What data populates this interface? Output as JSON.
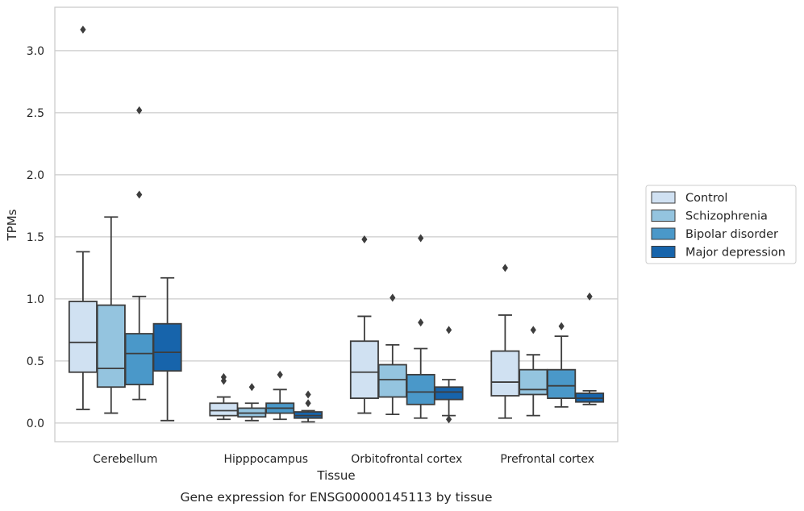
{
  "chart_data": {
    "type": "box",
    "title": "",
    "caption": "Gene expression for ENSG00000145113 by tissue",
    "xlabel": "Tissue",
    "ylabel": "TPMs",
    "ylim": [
      -0.15,
      3.35
    ],
    "yticks": [
      0.0,
      0.5,
      1.0,
      1.5,
      2.0,
      2.5,
      3.0
    ],
    "ytick_labels": [
      "0.0",
      "0.5",
      "1.0",
      "1.5",
      "2.0",
      "2.5",
      "3.0"
    ],
    "grid": "horizontal",
    "legend_position": "right",
    "categories": [
      "Cerebellum",
      "Hipppocampus",
      "Orbitofrontal cortex",
      "Prefrontal cortex"
    ],
    "series": [
      {
        "name": "Control",
        "color": "#d0e1f2",
        "boxes": [
          {
            "whisker_low": 0.11,
            "q1": 0.41,
            "median": 0.65,
            "q3": 0.98,
            "whisker_high": 1.38,
            "outliers": [
              3.17
            ]
          },
          {
            "whisker_low": 0.03,
            "q1": 0.06,
            "median": 0.1,
            "q3": 0.16,
            "whisker_high": 0.21,
            "outliers": [
              0.34,
              0.37
            ]
          },
          {
            "whisker_low": 0.08,
            "q1": 0.2,
            "median": 0.41,
            "q3": 0.66,
            "whisker_high": 0.86,
            "outliers": [
              1.48
            ]
          },
          {
            "whisker_low": 0.04,
            "q1": 0.22,
            "median": 0.33,
            "q3": 0.58,
            "whisker_high": 0.87,
            "outliers": [
              1.25
            ]
          }
        ]
      },
      {
        "name": "Schizophrenia",
        "color": "#94c4df",
        "boxes": [
          {
            "whisker_low": 0.08,
            "q1": 0.29,
            "median": 0.44,
            "q3": 0.95,
            "whisker_high": 1.66,
            "outliers": []
          },
          {
            "whisker_low": 0.02,
            "q1": 0.05,
            "median": 0.08,
            "q3": 0.12,
            "whisker_high": 0.16,
            "outliers": [
              0.29
            ]
          },
          {
            "whisker_low": 0.07,
            "q1": 0.21,
            "median": 0.35,
            "q3": 0.47,
            "whisker_high": 0.63,
            "outliers": [
              1.01
            ]
          },
          {
            "whisker_low": 0.06,
            "q1": 0.23,
            "median": 0.27,
            "q3": 0.43,
            "whisker_high": 0.55,
            "outliers": [
              0.75
            ]
          }
        ]
      },
      {
        "name": "Bipolar disorder",
        "color": "#4a98c9",
        "boxes": [
          {
            "whisker_low": 0.19,
            "q1": 0.31,
            "median": 0.56,
            "q3": 0.72,
            "whisker_high": 1.02,
            "outliers": [
              1.84,
              2.52
            ]
          },
          {
            "whisker_low": 0.03,
            "q1": 0.08,
            "median": 0.12,
            "q3": 0.16,
            "whisker_high": 0.27,
            "outliers": [
              0.39
            ]
          },
          {
            "whisker_low": 0.04,
            "q1": 0.15,
            "median": 0.25,
            "q3": 0.39,
            "whisker_high": 0.6,
            "outliers": [
              0.81,
              1.49
            ]
          },
          {
            "whisker_low": 0.13,
            "q1": 0.2,
            "median": 0.3,
            "q3": 0.43,
            "whisker_high": 0.7,
            "outliers": [
              0.78
            ]
          }
        ]
      },
      {
        "name": "Major depression",
        "color": "#1764ab",
        "boxes": [
          {
            "whisker_low": 0.02,
            "q1": 0.42,
            "median": 0.57,
            "q3": 0.8,
            "whisker_high": 1.17,
            "outliers": []
          },
          {
            "whisker_low": 0.01,
            "q1": 0.04,
            "median": 0.06,
            "q3": 0.09,
            "whisker_high": 0.1,
            "outliers": [
              0.16,
              0.23
            ]
          },
          {
            "whisker_low": 0.06,
            "q1": 0.19,
            "median": 0.25,
            "q3": 0.29,
            "whisker_high": 0.35,
            "outliers": [
              0.03,
              0.75
            ]
          },
          {
            "whisker_low": 0.15,
            "q1": 0.17,
            "median": 0.2,
            "q3": 0.24,
            "whisker_high": 0.26,
            "outliers": [
              1.02
            ]
          }
        ]
      }
    ]
  }
}
